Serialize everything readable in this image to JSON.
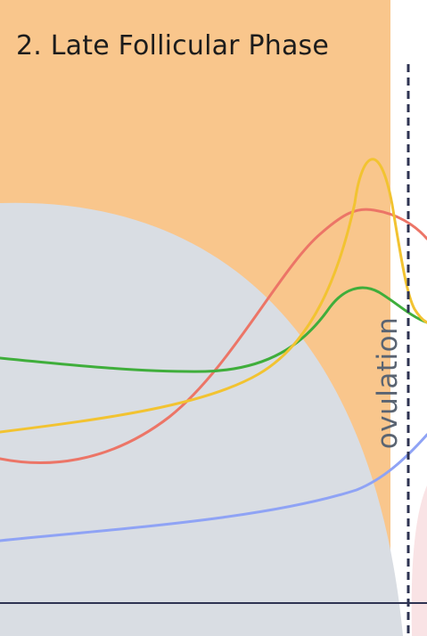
{
  "phase": {
    "title": "2. Late Follicular Phase",
    "color": "#f9c68c"
  },
  "ovulation": {
    "label": "ovulation",
    "line_color": "#2e3352"
  },
  "regions": {
    "uterine_background_color": "#d9dde3",
    "luteal_edge_color": "#f9e3e5"
  },
  "baseline": {
    "color": "#2e3352"
  },
  "hormone_curves": [
    {
      "id": "estrogen",
      "color": "#f2c331"
    },
    {
      "id": "lh",
      "color": "#ec7567"
    },
    {
      "id": "fsh",
      "color": "#3fae3b"
    },
    {
      "id": "progesterone",
      "color": "#8fa3f5"
    }
  ]
}
